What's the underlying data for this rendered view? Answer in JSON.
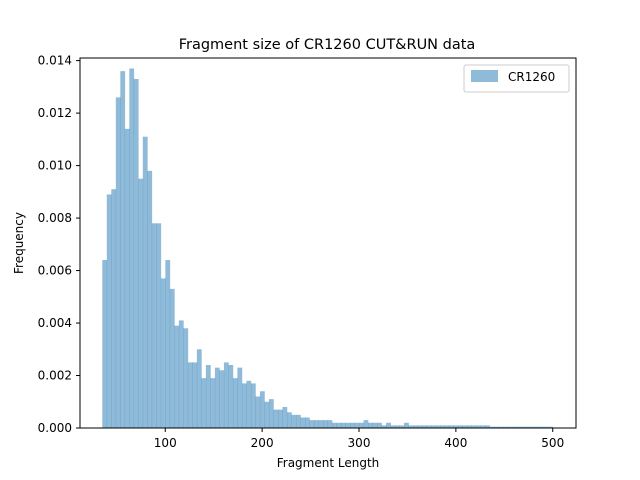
{
  "chart_data": {
    "type": "bar",
    "title": "Fragment size of CR1260 CUT&RUN data",
    "xlabel": "Fragment Length",
    "ylabel": "Frequency",
    "xlim": [
      12,
      524
    ],
    "ylim": [
      0,
      0.0141
    ],
    "xticks": [
      100,
      200,
      300,
      400,
      500
    ],
    "xtick_labels": [
      "100",
      "200",
      "300",
      "400",
      "500"
    ],
    "yticks": [
      0,
      0.002,
      0.004,
      0.006,
      0.008,
      0.01,
      0.012,
      0.014
    ],
    "ytick_labels": [
      "0.000",
      "0.002",
      "0.004",
      "0.006",
      "0.008",
      "0.010",
      "0.012",
      "0.014"
    ],
    "legend": {
      "position": "top-right",
      "entries": [
        "CR1260"
      ]
    },
    "grid": false,
    "series": [
      {
        "name": "CR1260",
        "color": "#1f77b4",
        "alpha": 0.5,
        "bin_start": 35,
        "bin_width": 4.65,
        "values": [
          0.0064,
          0.0089,
          0.0091,
          0.0126,
          0.0136,
          0.0114,
          0.0137,
          0.0133,
          0.0095,
          0.0111,
          0.0098,
          0.0078,
          0.0078,
          0.0057,
          0.0064,
          0.0053,
          0.0039,
          0.0041,
          0.0038,
          0.0025,
          0.0025,
          0.003,
          0.0019,
          0.0024,
          0.0019,
          0.0023,
          0.0022,
          0.0025,
          0.0024,
          0.0019,
          0.0023,
          0.0017,
          0.0018,
          0.0017,
          0.0012,
          0.0014,
          0.001,
          0.0011,
          0.0007,
          0.0007,
          0.0008,
          0.0006,
          0.0005,
          0.0005,
          0.0004,
          0.0004,
          0.0003,
          0.0003,
          0.0003,
          0.0003,
          0.0003,
          0.0002,
          0.0002,
          0.0002,
          0.0002,
          0.0002,
          0.0002,
          0.0002,
          0.0003,
          0.0002,
          0.0002,
          0.0002,
          0.0001,
          0.0002,
          0.0001,
          0.0001,
          0.0001,
          0.0002,
          0.0001,
          0.0001,
          0.0001,
          0.0001,
          0.0001,
          0.0001,
          0.0001,
          0.0001,
          0.0001,
          0.0001,
          0.0001,
          0.0001,
          0.0001,
          0.0001,
          0.0001,
          0.0001,
          0.0001,
          0.0001,
          5e-05,
          5e-05,
          5e-05,
          5e-05,
          5e-05,
          5e-05,
          5e-05,
          5e-05,
          5e-05,
          5e-05,
          5e-05,
          5e-05,
          5e-05,
          5e-05
        ]
      }
    ]
  }
}
